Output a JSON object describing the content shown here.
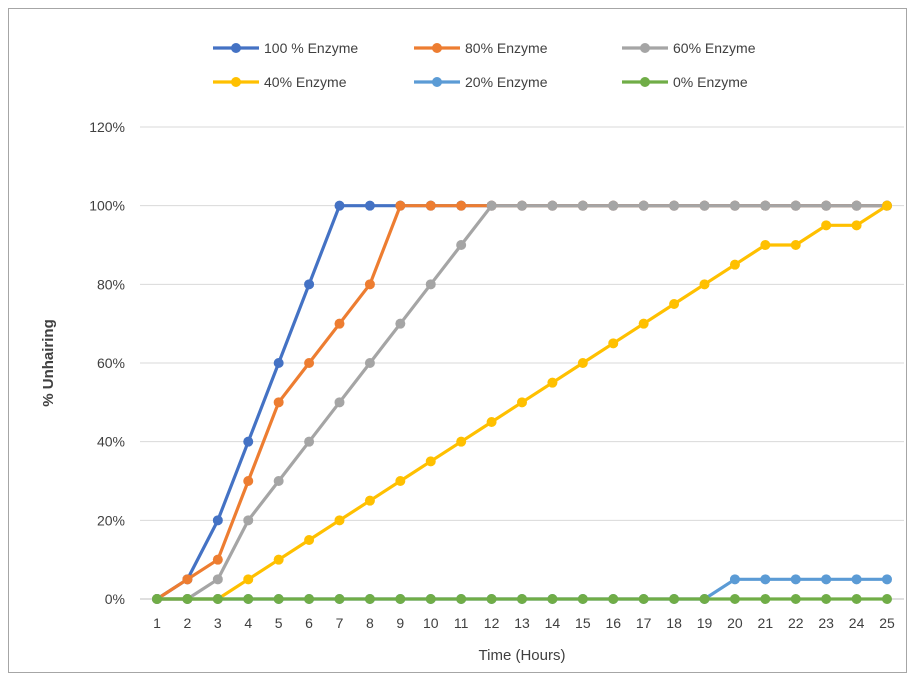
{
  "chart_data": {
    "type": "line",
    "title": "",
    "xlabel": "Time (Hours)",
    "ylabel": "% Unhairing",
    "x": [
      1,
      2,
      3,
      4,
      5,
      6,
      7,
      8,
      9,
      10,
      11,
      12,
      13,
      14,
      15,
      16,
      17,
      18,
      19,
      20,
      21,
      22,
      23,
      24,
      25
    ],
    "ylim": [
      0,
      120
    ],
    "yticks": [
      0,
      20,
      40,
      60,
      80,
      100,
      120
    ],
    "ytick_labels": [
      "0%",
      "20%",
      "40%",
      "60%",
      "80%",
      "100%",
      "120%"
    ],
    "grid": "horizontal",
    "legend_position": "top",
    "series": [
      {
        "name": "100 % Enzyme",
        "color": "#4472C4",
        "values": [
          0,
          5,
          20,
          40,
          60,
          80,
          100,
          100,
          100,
          100,
          100,
          100,
          100,
          100,
          100,
          100,
          100,
          100,
          100,
          100,
          100,
          100,
          100,
          100,
          100
        ]
      },
      {
        "name": "80% Enzyme",
        "color": "#ED7D31",
        "values": [
          0,
          5,
          10,
          30,
          50,
          60,
          70,
          80,
          100,
          100,
          100,
          100,
          100,
          100,
          100,
          100,
          100,
          100,
          100,
          100,
          100,
          100,
          100,
          100,
          100
        ]
      },
      {
        "name": "60% Enzyme",
        "color": "#A5A5A5",
        "values": [
          0,
          0,
          5,
          20,
          30,
          40,
          50,
          60,
          70,
          80,
          90,
          100,
          100,
          100,
          100,
          100,
          100,
          100,
          100,
          100,
          100,
          100,
          100,
          100,
          100
        ]
      },
      {
        "name": "40% Enzyme",
        "color": "#FFC000",
        "values": [
          0,
          0,
          0,
          5,
          10,
          15,
          20,
          25,
          30,
          35,
          40,
          45,
          50,
          55,
          60,
          65,
          70,
          75,
          80,
          85,
          90,
          90,
          95,
          95,
          100
        ]
      },
      {
        "name": "20% Enzyme",
        "color": "#5B9BD5",
        "values": [
          0,
          0,
          0,
          0,
          0,
          0,
          0,
          0,
          0,
          0,
          0,
          0,
          0,
          0,
          0,
          0,
          0,
          0,
          0,
          5,
          5,
          5,
          5,
          5,
          5
        ]
      },
      {
        "name": "0% Enzyme",
        "color": "#70AD47",
        "values": [
          0,
          0,
          0,
          0,
          0,
          0,
          0,
          0,
          0,
          0,
          0,
          0,
          0,
          0,
          0,
          0,
          0,
          0,
          0,
          0,
          0,
          0,
          0,
          0,
          0
        ]
      }
    ]
  }
}
